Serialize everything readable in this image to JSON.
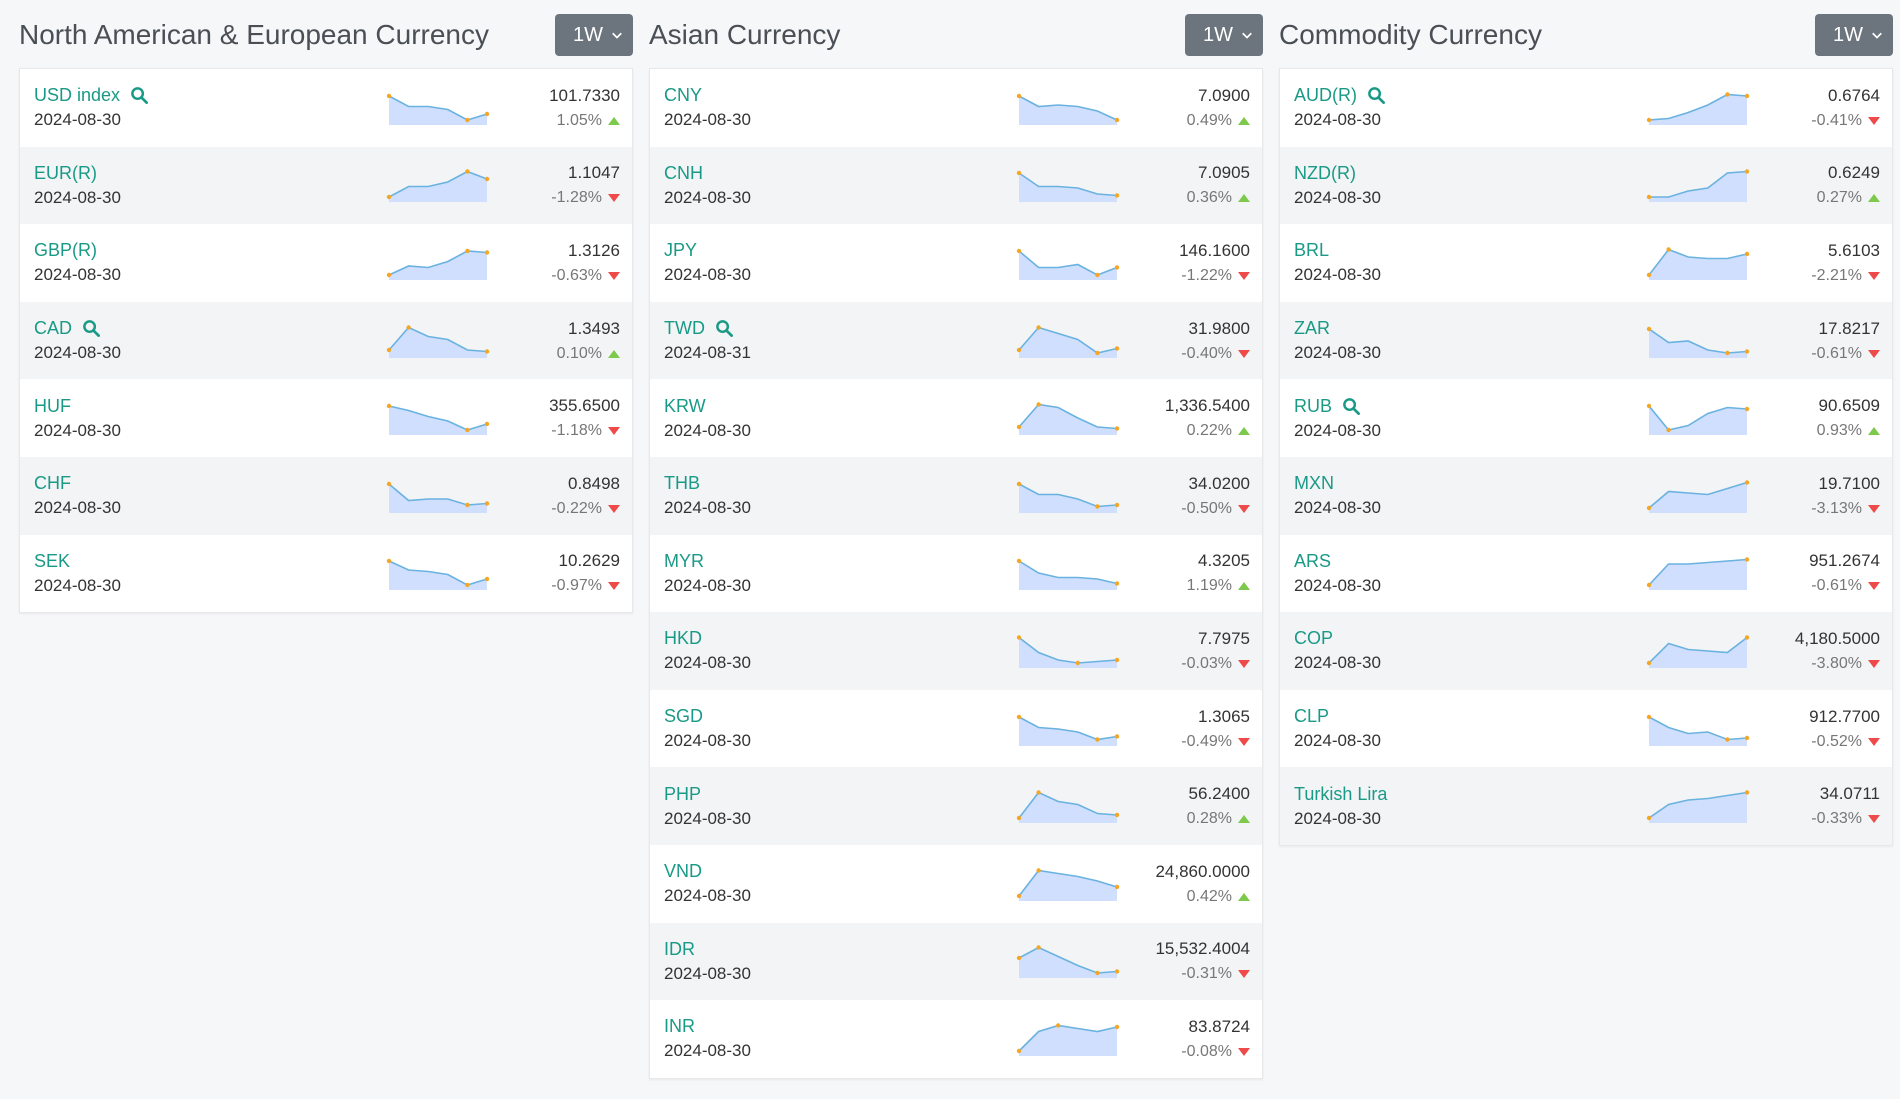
{
  "period_label": "1W",
  "panels": [
    {
      "title": "North American & European Currency",
      "rows": [
        {
          "name": "USD index",
          "search": true,
          "date": "2024-08-30",
          "value": "101.7330",
          "change": "1.05%",
          "dir": "up",
          "spark": [
            0.9,
            0.55,
            0.55,
            0.45,
            0.1,
            0.3
          ]
        },
        {
          "name": "EUR(R)",
          "search": false,
          "date": "2024-08-30",
          "value": "1.1047",
          "change": "-1.28%",
          "dir": "down",
          "spark": [
            0.1,
            0.45,
            0.45,
            0.6,
            0.95,
            0.7
          ]
        },
        {
          "name": "GBP(R)",
          "search": false,
          "date": "2024-08-30",
          "value": "1.3126",
          "change": "-0.63%",
          "dir": "down",
          "spark": [
            0.1,
            0.4,
            0.35,
            0.55,
            0.9,
            0.85
          ]
        },
        {
          "name": "CAD",
          "search": true,
          "date": "2024-08-30",
          "value": "1.3493",
          "change": "0.10%",
          "dir": "up",
          "spark": [
            0.2,
            0.95,
            0.65,
            0.55,
            0.2,
            0.15
          ]
        },
        {
          "name": "HUF",
          "search": false,
          "date": "2024-08-30",
          "value": "355.6500",
          "change": "-1.18%",
          "dir": "down",
          "spark": [
            0.9,
            0.75,
            0.55,
            0.4,
            0.1,
            0.3
          ]
        },
        {
          "name": "CHF",
          "search": false,
          "date": "2024-08-30",
          "value": "0.8498",
          "change": "-0.22%",
          "dir": "down",
          "spark": [
            0.9,
            0.35,
            0.4,
            0.4,
            0.2,
            0.25
          ]
        },
        {
          "name": "SEK",
          "search": false,
          "date": "2024-08-30",
          "value": "10.2629",
          "change": "-0.97%",
          "dir": "down",
          "spark": [
            0.9,
            0.6,
            0.55,
            0.45,
            0.1,
            0.3
          ]
        }
      ]
    },
    {
      "title": "Asian Currency",
      "rows": [
        {
          "name": "CNY",
          "search": false,
          "date": "2024-08-30",
          "value": "7.0900",
          "change": "0.49%",
          "dir": "up",
          "spark": [
            0.9,
            0.55,
            0.6,
            0.55,
            0.4,
            0.1
          ]
        },
        {
          "name": "CNH",
          "search": false,
          "date": "2024-08-30",
          "value": "7.0905",
          "change": "0.36%",
          "dir": "up",
          "spark": [
            0.9,
            0.45,
            0.45,
            0.4,
            0.2,
            0.15
          ]
        },
        {
          "name": "JPY",
          "search": false,
          "date": "2024-08-30",
          "value": "146.1600",
          "change": "-1.22%",
          "dir": "down",
          "spark": [
            0.9,
            0.35,
            0.35,
            0.45,
            0.1,
            0.35
          ]
        },
        {
          "name": "TWD",
          "search": true,
          "date": "2024-08-31",
          "value": "31.9800",
          "change": "-0.40%",
          "dir": "down",
          "spark": [
            0.2,
            0.95,
            0.75,
            0.55,
            0.1,
            0.25
          ]
        },
        {
          "name": "KRW",
          "search": false,
          "date": "2024-08-30",
          "value": "1,336.5400",
          "change": "0.22%",
          "dir": "up",
          "spark": [
            0.2,
            0.95,
            0.85,
            0.5,
            0.2,
            0.15
          ]
        },
        {
          "name": "THB",
          "search": false,
          "date": "2024-08-30",
          "value": "34.0200",
          "change": "-0.50%",
          "dir": "down",
          "spark": [
            0.9,
            0.55,
            0.55,
            0.4,
            0.15,
            0.2
          ]
        },
        {
          "name": "MYR",
          "search": false,
          "date": "2024-08-30",
          "value": "4.3205",
          "change": "1.19%",
          "dir": "up",
          "spark": [
            0.9,
            0.5,
            0.35,
            0.35,
            0.3,
            0.15
          ]
        },
        {
          "name": "HKD",
          "search": false,
          "date": "2024-08-30",
          "value": "7.7975",
          "change": "-0.03%",
          "dir": "down",
          "spark": [
            0.95,
            0.45,
            0.2,
            0.1,
            0.15,
            0.2
          ]
        },
        {
          "name": "SGD",
          "search": false,
          "date": "2024-08-30",
          "value": "1.3065",
          "change": "-0.49%",
          "dir": "down",
          "spark": [
            0.9,
            0.55,
            0.5,
            0.4,
            0.15,
            0.25
          ]
        },
        {
          "name": "PHP",
          "search": false,
          "date": "2024-08-30",
          "value": "56.2400",
          "change": "0.28%",
          "dir": "up",
          "spark": [
            0.1,
            0.95,
            0.65,
            0.55,
            0.25,
            0.2
          ]
        },
        {
          "name": "VND",
          "search": false,
          "date": "2024-08-30",
          "value": "24,860.0000",
          "change": "0.42%",
          "dir": "up",
          "spark": [
            0.1,
            0.95,
            0.85,
            0.75,
            0.6,
            0.4
          ]
        },
        {
          "name": "IDR",
          "search": false,
          "date": "2024-08-30",
          "value": "15,532.4004",
          "change": "-0.31%",
          "dir": "down",
          "spark": [
            0.6,
            0.95,
            0.65,
            0.35,
            0.1,
            0.15
          ]
        },
        {
          "name": "INR",
          "search": false,
          "date": "2024-08-30",
          "value": "83.8724",
          "change": "-0.08%",
          "dir": "down",
          "spark": [
            0.1,
            0.75,
            0.95,
            0.85,
            0.75,
            0.9
          ]
        }
      ]
    },
    {
      "title": "Commodity Currency",
      "rows": [
        {
          "name": "AUD(R)",
          "search": true,
          "date": "2024-08-30",
          "value": "0.6764",
          "change": "-0.41%",
          "dir": "down",
          "spark": [
            0.1,
            0.15,
            0.35,
            0.6,
            0.95,
            0.9
          ]
        },
        {
          "name": "NZD(R)",
          "search": false,
          "date": "2024-08-30",
          "value": "0.6249",
          "change": "0.27%",
          "dir": "up",
          "spark": [
            0.1,
            0.1,
            0.3,
            0.4,
            0.9,
            0.95
          ]
        },
        {
          "name": "BRL",
          "search": false,
          "date": "2024-08-30",
          "value": "5.6103",
          "change": "-2.21%",
          "dir": "down",
          "spark": [
            0.1,
            0.95,
            0.7,
            0.65,
            0.65,
            0.8
          ]
        },
        {
          "name": "ZAR",
          "search": false,
          "date": "2024-08-30",
          "value": "17.8217",
          "change": "-0.61%",
          "dir": "down",
          "spark": [
            0.9,
            0.45,
            0.5,
            0.2,
            0.1,
            0.15
          ]
        },
        {
          "name": "RUB",
          "search": true,
          "date": "2024-08-30",
          "value": "90.6509",
          "change": "0.93%",
          "dir": "up",
          "spark": [
            0.9,
            0.1,
            0.25,
            0.65,
            0.85,
            0.8
          ]
        },
        {
          "name": "MXN",
          "search": false,
          "date": "2024-08-30",
          "value": "19.7100",
          "change": "-3.13%",
          "dir": "down",
          "spark": [
            0.1,
            0.65,
            0.6,
            0.55,
            0.75,
            0.95
          ]
        },
        {
          "name": "ARS",
          "search": false,
          "date": "2024-08-30",
          "value": "951.2674",
          "change": "-0.61%",
          "dir": "down",
          "spark": [
            0.1,
            0.8,
            0.8,
            0.85,
            0.9,
            0.95
          ]
        },
        {
          "name": "COP",
          "search": false,
          "date": "2024-08-30",
          "value": "4,180.5000",
          "change": "-3.80%",
          "dir": "down",
          "spark": [
            0.1,
            0.75,
            0.55,
            0.5,
            0.45,
            0.95
          ]
        },
        {
          "name": "CLP",
          "search": false,
          "date": "2024-08-30",
          "value": "912.7700",
          "change": "-0.52%",
          "dir": "down",
          "spark": [
            0.9,
            0.55,
            0.35,
            0.4,
            0.15,
            0.2
          ]
        },
        {
          "name": "Turkish Lira",
          "search": false,
          "date": "2024-08-30",
          "value": "34.0711",
          "change": "-0.33%",
          "dir": "down",
          "spark": [
            0.1,
            0.55,
            0.7,
            0.75,
            0.85,
            0.95
          ]
        }
      ]
    }
  ],
  "colors": {
    "accent": "#1a9a86",
    "spark_line": "#6ab2e0",
    "spark_fill": "#cfdffd",
    "spark_dot": "#f5a623",
    "up": "#7cc94c",
    "down": "#ef4a4a"
  }
}
